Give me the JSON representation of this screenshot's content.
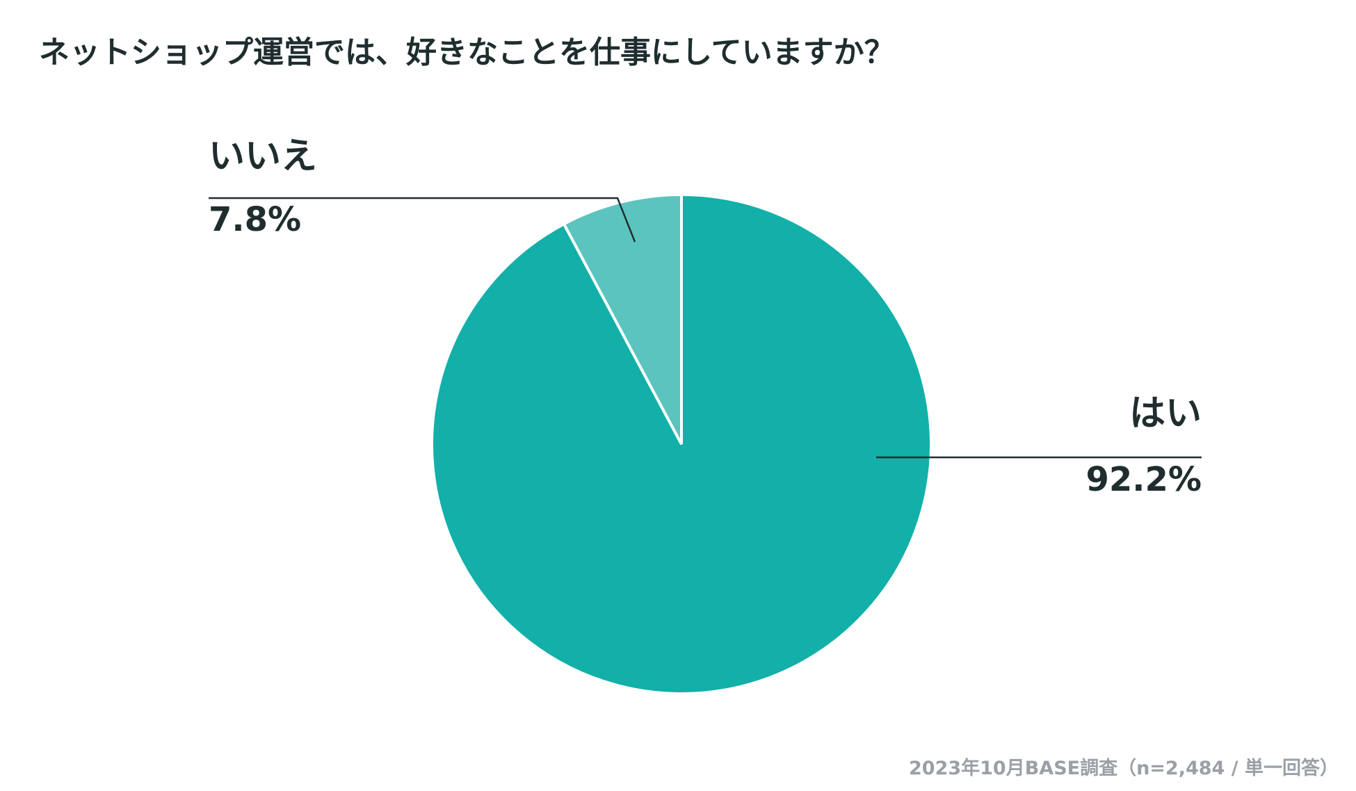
{
  "chart_data": {
    "type": "pie",
    "title": "ネットショップ運営では、好きなことを仕事にしていますか？",
    "categories": [
      "はい",
      "いいえ"
    ],
    "values": [
      92.2,
      7.8
    ],
    "value_labels": [
      "92.2%",
      "7.8%"
    ],
    "colors": [
      "#12b0a9",
      "#5cc4bf"
    ],
    "note": "2023年10月BASE調査（n=2,484 / 単一回答）"
  }
}
